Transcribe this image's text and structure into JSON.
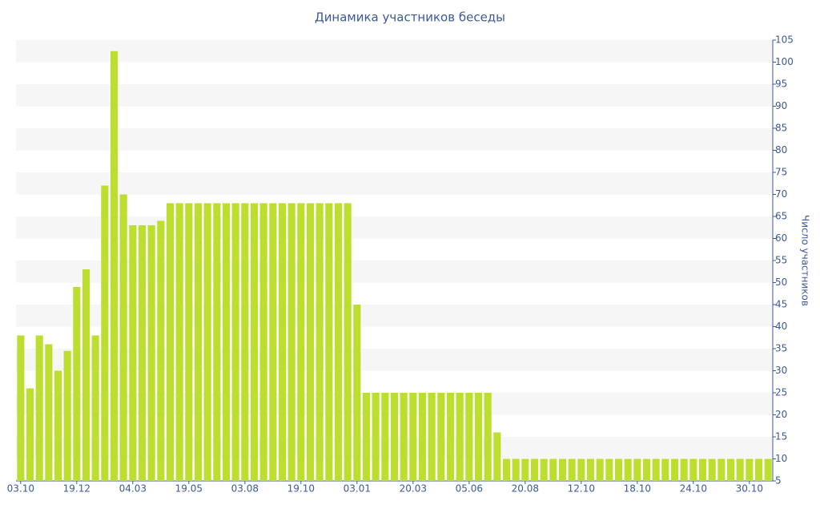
{
  "chart_data": {
    "type": "bar",
    "title": "Динамика участников беседы",
    "y_label": "Число участников",
    "categories": [
      "03.10",
      null,
      null,
      null,
      null,
      null,
      "19.12",
      null,
      null,
      null,
      null,
      null,
      "04.03",
      null,
      null,
      null,
      null,
      null,
      "19.05",
      null,
      null,
      null,
      null,
      null,
      "03.08",
      null,
      null,
      null,
      null,
      null,
      "19.10",
      null,
      null,
      null,
      null,
      null,
      "03.01",
      null,
      null,
      null,
      null,
      null,
      "20.03",
      null,
      null,
      null,
      null,
      null,
      "05.06",
      null,
      null,
      null,
      null,
      null,
      "20.08",
      null,
      null,
      null,
      null,
      null,
      "12.10",
      null,
      null,
      null,
      null,
      null,
      "18.10",
      null,
      null,
      null,
      null,
      null,
      "24.10",
      null,
      null,
      null,
      null,
      null,
      "30.10",
      null,
      null
    ],
    "values": [
      38,
      26,
      38,
      36,
      30,
      34.5,
      49,
      53,
      38,
      72,
      102.5,
      70,
      63,
      63,
      63,
      64,
      68,
      68,
      68,
      68,
      68,
      68,
      68,
      68,
      68,
      68,
      68,
      68,
      68,
      68,
      68,
      68,
      68,
      68,
      68,
      68,
      45,
      25,
      25,
      25,
      25,
      25,
      25,
      25,
      25,
      25,
      25,
      25,
      25,
      25,
      25,
      16,
      10,
      10,
      10,
      10,
      10,
      10,
      10,
      10,
      10,
      10,
      10,
      10,
      10,
      10,
      10,
      10,
      10,
      10,
      10,
      10,
      10,
      10,
      10,
      10,
      10,
      10,
      10,
      10,
      10
    ],
    "color": "#bcdf2f",
    "ylim": [
      5,
      105
    ],
    "yticks": [
      5,
      10,
      15,
      20,
      25,
      30,
      35,
      40,
      45,
      50,
      55,
      60,
      65,
      70,
      75,
      80,
      85,
      90,
      95,
      100,
      105
    ],
    "grid": true,
    "y_axis_side": "right"
  }
}
